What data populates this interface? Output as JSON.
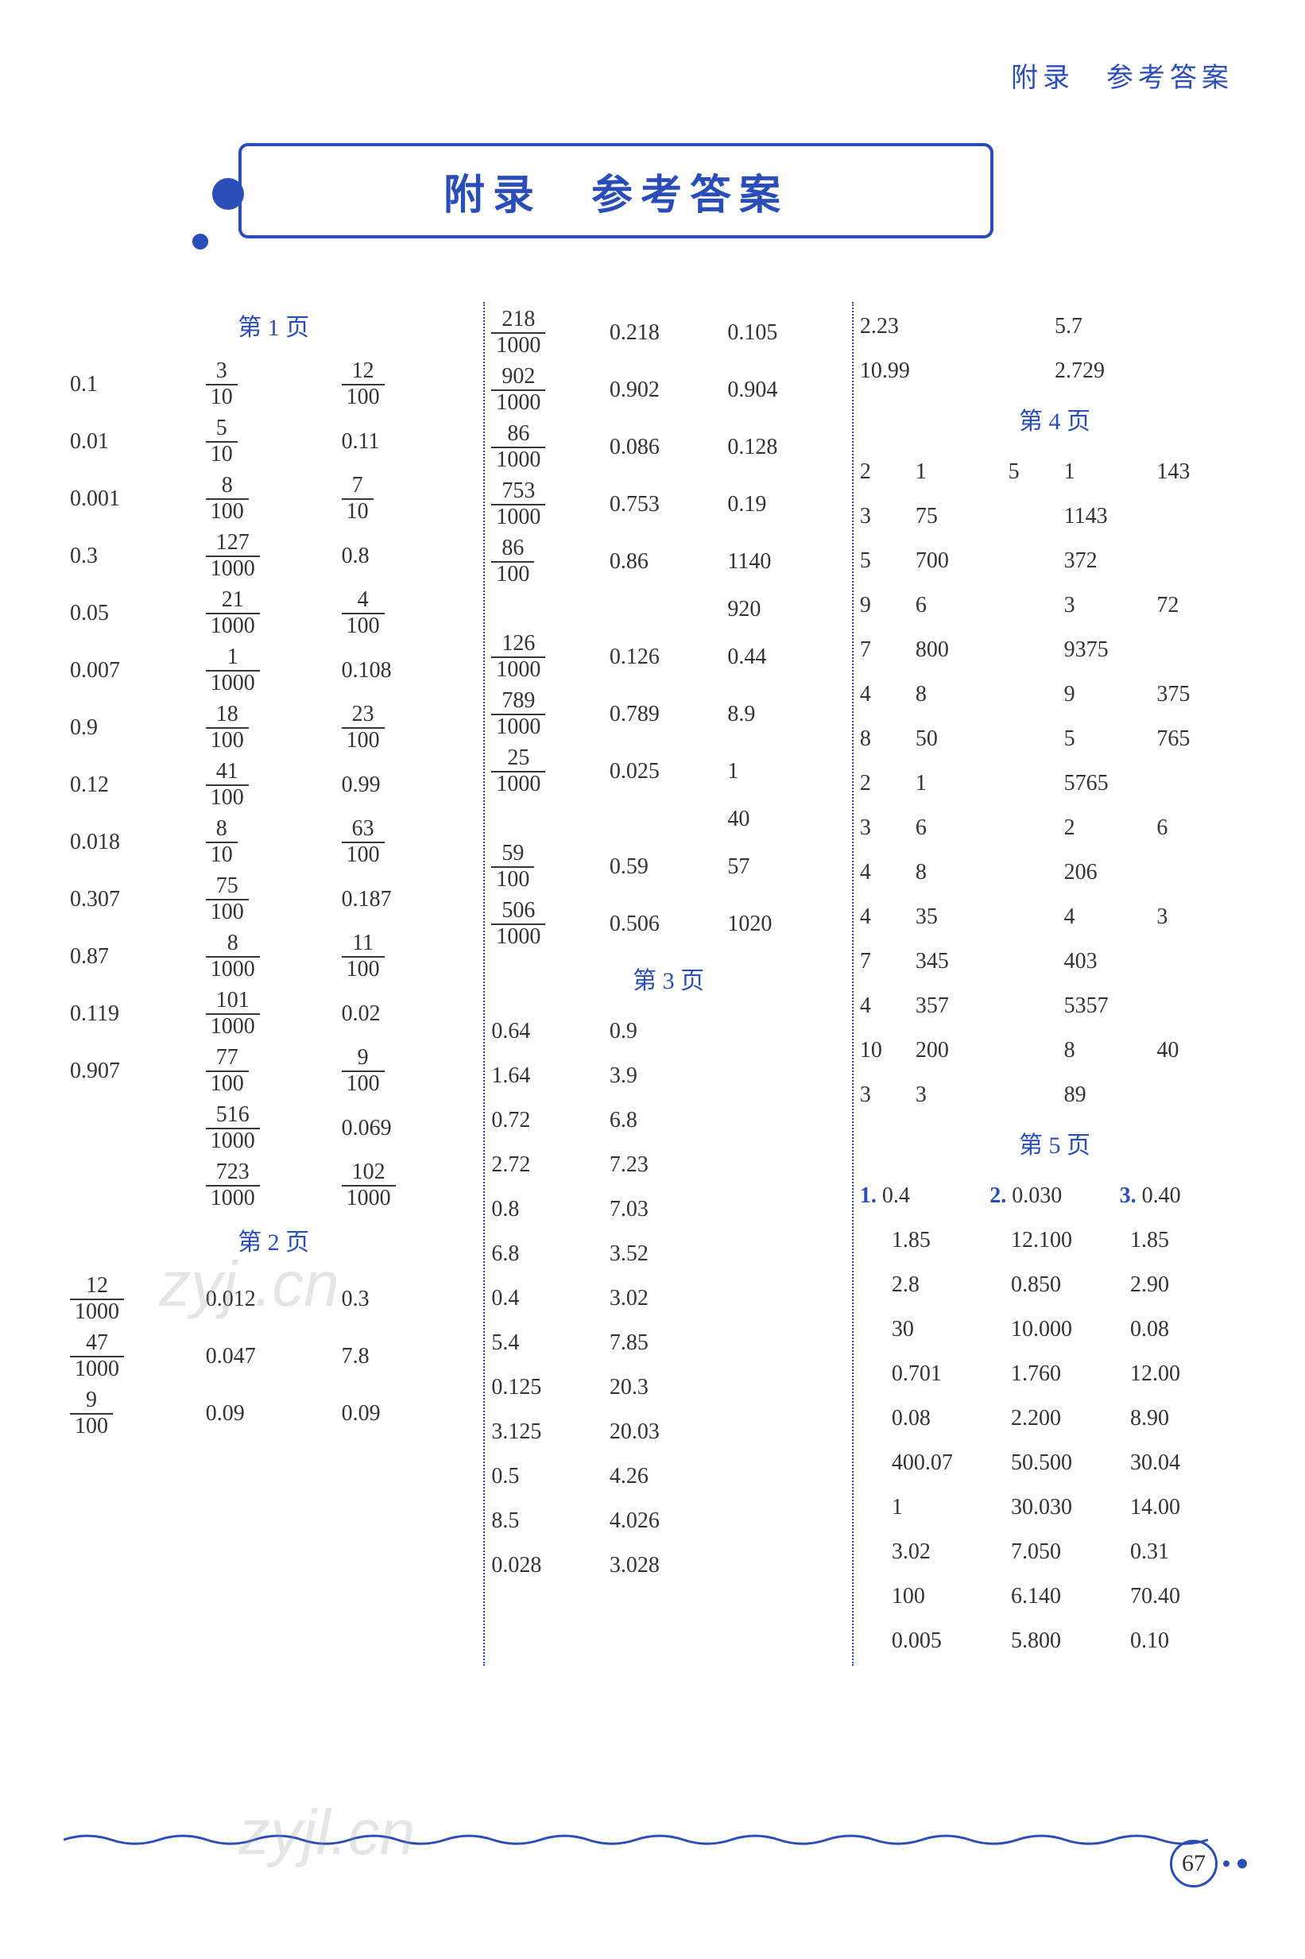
{
  "header_label": "附录　参考答案",
  "title": "附录　参考答案",
  "page_number": "67",
  "watermarks": [
    "zyj .cn",
    "zyjl.cn"
  ],
  "colors": {
    "primary": "#2a4db8",
    "text": "#333333",
    "background": "#ffffff"
  },
  "col1": {
    "heading1": "第 1 页",
    "rows": [
      {
        "a": "0.1",
        "b": {
          "n": "3",
          "d": "10"
        },
        "c": {
          "n": "12",
          "d": "100"
        }
      },
      {
        "a": "0.01",
        "b": {
          "n": "5",
          "d": "10"
        },
        "c": "0.11"
      },
      {
        "a": "0.001",
        "b": {
          "n": "8",
          "d": "100"
        },
        "c": {
          "n": "7",
          "d": "10"
        }
      },
      {
        "a": "0.3",
        "b": {
          "n": "127",
          "d": "1000"
        },
        "c": "0.8"
      },
      {
        "a": "0.05",
        "b": {
          "n": "21",
          "d": "1000"
        },
        "c": {
          "n": "4",
          "d": "100"
        }
      },
      {
        "a": "0.007",
        "b": {
          "n": "1",
          "d": "1000"
        },
        "c": "0.108"
      },
      {
        "a": "0.9",
        "b": {
          "n": "18",
          "d": "100"
        },
        "c": {
          "n": "23",
          "d": "100"
        }
      },
      {
        "a": "0.12",
        "b": {
          "n": "41",
          "d": "100"
        },
        "c": "0.99"
      },
      {
        "a": "0.018",
        "b": {
          "n": "8",
          "d": "10"
        },
        "c": {
          "n": "63",
          "d": "100"
        }
      },
      {
        "a": "0.307",
        "b": {
          "n": "75",
          "d": "100"
        },
        "c": "0.187"
      },
      {
        "a": "0.87",
        "b": {
          "n": "8",
          "d": "1000"
        },
        "c": {
          "n": "11",
          "d": "100"
        }
      },
      {
        "a": "0.119",
        "b": {
          "n": "101",
          "d": "1000"
        },
        "c": "0.02"
      },
      {
        "a": "0.907",
        "b": {
          "n": "77",
          "d": "100"
        },
        "c": {
          "n": "9",
          "d": "100"
        }
      },
      {
        "a": "",
        "b": {
          "n": "516",
          "d": "1000"
        },
        "c": "0.069"
      },
      {
        "a": "",
        "b": {
          "n": "723",
          "d": "1000"
        },
        "c": {
          "n": "102",
          "d": "1000"
        }
      }
    ],
    "heading2": "第 2 页",
    "rows2": [
      {
        "a": {
          "n": "12",
          "d": "1000"
        },
        "b": "0.012",
        "c": "0.3"
      },
      {
        "a": {
          "n": "47",
          "d": "1000"
        },
        "b": "0.047",
        "c": "7.8"
      },
      {
        "a": {
          "n": "9",
          "d": "100"
        },
        "b": "0.09",
        "c": "0.09"
      }
    ]
  },
  "col2": {
    "rows_top": [
      {
        "a": {
          "n": "218",
          "d": "1000"
        },
        "b": "0.218",
        "c": "0.105"
      },
      {
        "a": {
          "n": "902",
          "d": "1000"
        },
        "b": "0.902",
        "c": "0.904"
      },
      {
        "a": {
          "n": "86",
          "d": "1000"
        },
        "b": "0.086",
        "c": "0.128"
      },
      {
        "a": {
          "n": "753",
          "d": "1000"
        },
        "b": "0.753",
        "c": "0.19"
      },
      {
        "a": {
          "n": "86",
          "d": "100"
        },
        "b": "0.86",
        "c": "1140"
      },
      {
        "a": "",
        "b": "",
        "c": "920"
      },
      {
        "a": {
          "n": "126",
          "d": "1000"
        },
        "b": "0.126",
        "c": "0.44"
      },
      {
        "a": {
          "n": "789",
          "d": "1000"
        },
        "b": "0.789",
        "c": "8.9"
      },
      {
        "a": {
          "n": "25",
          "d": "1000"
        },
        "b": "0.025",
        "c": "1"
      },
      {
        "a": "",
        "b": "",
        "c": "40"
      },
      {
        "a": {
          "n": "59",
          "d": "100"
        },
        "b": "0.59",
        "c": "57"
      },
      {
        "a": {
          "n": "506",
          "d": "1000"
        },
        "b": "0.506",
        "c": "1020"
      }
    ],
    "heading3": "第 3 页",
    "rows3": [
      {
        "a": "0.64",
        "b": "0.9"
      },
      {
        "a": "1.64",
        "b": "3.9"
      },
      {
        "a": "0.72",
        "b": "6.8"
      },
      {
        "a": "2.72",
        "b": "7.23"
      },
      {
        "a": "0.8",
        "b": "7.03"
      },
      {
        "a": "6.8",
        "b": "3.52"
      },
      {
        "a": "0.4",
        "b": "3.02"
      },
      {
        "a": "5.4",
        "b": "7.85"
      },
      {
        "a": "0.125",
        "b": "20.3"
      },
      {
        "a": "3.125",
        "b": "20.03"
      },
      {
        "a": "0.5",
        "b": "4.26"
      },
      {
        "a": "8.5",
        "b": "4.026"
      },
      {
        "a": "0.028",
        "b": "3.028"
      }
    ]
  },
  "col3": {
    "top_rows": [
      {
        "a": "2.23",
        "b": "5.7"
      },
      {
        "a": "10.99",
        "b": "2.729"
      }
    ],
    "heading4": "第 4 页",
    "rows4": [
      [
        "2",
        "1",
        "5",
        "1",
        "143"
      ],
      [
        "3",
        "75",
        "",
        "1143",
        ""
      ],
      [
        "5",
        "700",
        "",
        "372",
        ""
      ],
      [
        "9",
        "6",
        "",
        "3",
        "72"
      ],
      [
        "7",
        "800",
        "",
        "9375",
        ""
      ],
      [
        "4",
        "8",
        "",
        "9",
        "375"
      ],
      [
        "8",
        "50",
        "",
        "5",
        "765"
      ],
      [
        "2",
        "1",
        "",
        "5765",
        ""
      ],
      [
        "3",
        "6",
        "",
        "2",
        "6"
      ],
      [
        "4",
        "8",
        "",
        "206",
        ""
      ],
      [
        "4",
        "35",
        "",
        "4",
        "3"
      ],
      [
        "7",
        "345",
        "",
        "403",
        ""
      ],
      [
        "4",
        "357",
        "",
        "5357",
        ""
      ],
      [
        "10",
        "200",
        "",
        "8",
        "40"
      ],
      [
        "3",
        "3",
        "",
        "89",
        ""
      ]
    ],
    "heading5": "第 5 页",
    "rows5_first": [
      "1.",
      "0.4",
      "2.",
      "0.030",
      "3.",
      "0.40"
    ],
    "rows5": [
      [
        "1.85",
        "12.100",
        "1.85"
      ],
      [
        "2.8",
        "0.850",
        "2.90"
      ],
      [
        "30",
        "10.000",
        "0.08"
      ],
      [
        "0.701",
        "1.760",
        "12.00"
      ],
      [
        "0.08",
        "2.200",
        "8.90"
      ],
      [
        "400.07",
        "50.500",
        "30.04"
      ],
      [
        "1",
        "30.030",
        "14.00"
      ],
      [
        "3.02",
        "7.050",
        "0.31"
      ],
      [
        "100",
        "6.140",
        "70.40"
      ],
      [
        "0.005",
        "5.800",
        "0.10"
      ]
    ]
  }
}
